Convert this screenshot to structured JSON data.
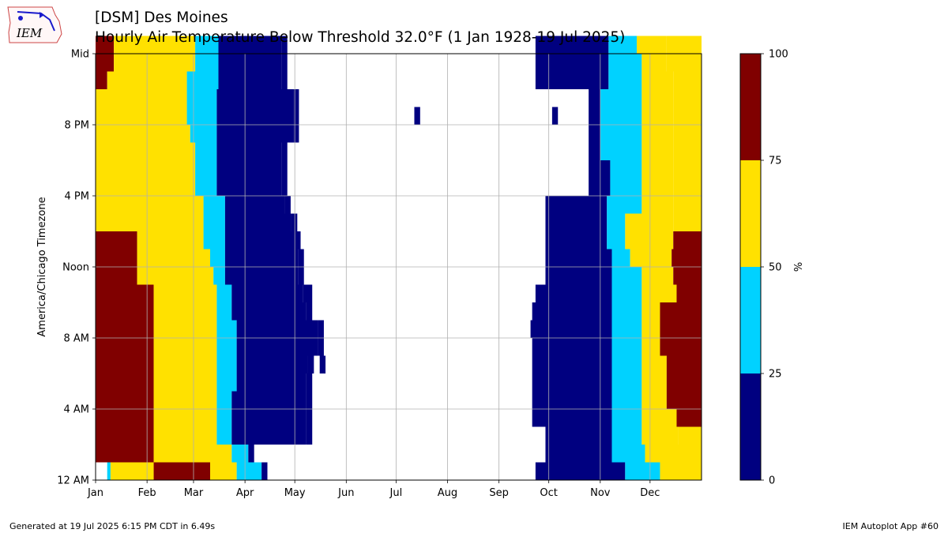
{
  "header": {
    "title_line1": "[DSM] Des Moines",
    "title_line2": "Hourly Air Temperature Below Threshold 32.0°F (1 Jan 1928-19 Jul 2025)",
    "logo_text": "IEM"
  },
  "footer": {
    "generated": "Generated at 19 Jul 2025 6:15 PM CDT in 6.49s",
    "app": "IEM Autoplot App #60"
  },
  "chart_data": {
    "type": "heatmap",
    "ylabel": "America/Chicago Timezone",
    "x_tick_labels": [
      "Jan",
      "Feb",
      "Mar",
      "Apr",
      "May",
      "Jun",
      "Jul",
      "Aug",
      "Sep",
      "Oct",
      "Nov",
      "Dec"
    ],
    "x_tick_days": [
      1,
      32,
      60,
      91,
      121,
      152,
      182,
      213,
      244,
      274,
      305,
      335
    ],
    "xlim_days": [
      1,
      366
    ],
    "y_tick_labels": [
      "12 AM",
      "4 AM",
      "8 AM",
      "Noon",
      "4 PM",
      "8 PM",
      "Mid"
    ],
    "y_tick_hours": [
      0,
      4,
      8,
      12,
      16,
      20,
      24
    ],
    "ylim_hours": [
      0,
      24
    ],
    "grid": true,
    "colorbar": {
      "label": "%",
      "ticks": [
        0,
        25,
        50,
        75,
        100
      ],
      "bins": [
        {
          "range": [
            0,
            25
          ],
          "color": "#000080"
        },
        {
          "range": [
            25,
            50
          ],
          "color": "#00d2ff"
        },
        {
          "range": [
            50,
            75
          ],
          "color": "#ffe100"
        },
        {
          "range": [
            75,
            100
          ],
          "color": "#800000"
        }
      ]
    },
    "category_colors": {
      "0": "#000080",
      "1": "#00d2ff",
      "2": "#ffe100",
      "3": "#800000"
    },
    "boundary_days_by_hour": [
      [
        [
          8,
          1,
          10,
          2,
          36,
          3,
          70,
          2,
          86,
          1,
          101,
          0
        ],
        [
          266,
          0,
          320,
          1,
          341,
          2
        ]
      ],
      [
        [
          1,
          3,
          36,
          2,
          70,
          2,
          83,
          1,
          93,
          0
        ],
        [
          272,
          0,
          312,
          1,
          332,
          2
        ]
      ],
      [
        [
          1,
          3,
          36,
          2,
          74,
          1,
          83,
          0,
          128,
          0
        ],
        [
          272,
          0,
          312,
          1,
          330,
          2,
          352,
          2
        ]
      ],
      [
        [
          1,
          3,
          36,
          2,
          74,
          1,
          83,
          0,
          128,
          0
        ],
        [
          264,
          0,
          312,
          1,
          330,
          2,
          351,
          3
        ]
      ],
      [
        [
          1,
          3,
          36,
          2,
          74,
          1,
          83,
          0,
          128,
          0
        ],
        [
          264,
          0,
          312,
          1,
          330,
          2,
          345,
          3
        ]
      ],
      [
        [
          1,
          3,
          36,
          2,
          74,
          1,
          86,
          0,
          128,
          0
        ],
        [
          264,
          0,
          312,
          1,
          330,
          2,
          345,
          3
        ]
      ],
      [
        [
          1,
          3,
          36,
          2,
          74,
          1,
          86,
          0,
          129,
          0
        ],
        [
          264,
          0,
          312,
          1,
          330,
          2,
          345,
          3
        ]
      ],
      [
        [
          1,
          3,
          36,
          2,
          74,
          1,
          86,
          0,
          135,
          0
        ],
        [
          264,
          0,
          312,
          1,
          330,
          2,
          341,
          3
        ]
      ],
      [
        [
          1,
          3,
          36,
          2,
          74,
          1,
          86,
          0,
          135,
          0
        ],
        [
          263,
          0,
          312,
          1,
          330,
          2,
          341,
          3
        ]
      ],
      [
        [
          1,
          3,
          36,
          2,
          74,
          1,
          83,
          0,
          128,
          0
        ],
        [
          264,
          0,
          312,
          1,
          330,
          2,
          341,
          3
        ]
      ],
      [
        [
          1,
          3,
          36,
          2,
          74,
          1,
          83,
          0,
          126,
          0
        ],
        [
          266,
          0,
          312,
          1,
          330,
          2,
          351,
          3
        ]
      ],
      [
        [
          1,
          3,
          26,
          2,
          72,
          1,
          79,
          0,
          123,
          0
        ],
        [
          272,
          0,
          312,
          1,
          330,
          2,
          349,
          3
        ]
      ],
      [
        [
          1,
          3,
          26,
          2,
          70,
          1,
          79,
          0,
          123,
          0
        ],
        [
          272,
          0,
          312,
          1,
          323,
          2,
          348,
          3
        ]
      ],
      [
        [
          1,
          3,
          26,
          2,
          66,
          1,
          79,
          0,
          121,
          0
        ],
        [
          272,
          0,
          309,
          1,
          320,
          2,
          349,
          3
        ]
      ],
      [
        [
          1,
          2,
          66,
          1,
          79,
          0,
          119,
          0
        ],
        [
          272,
          0,
          309,
          1,
          320,
          2,
          349,
          2
        ]
      ],
      [
        [
          1,
          2,
          66,
          1,
          79,
          0,
          115,
          0
        ],
        [
          272,
          0,
          309,
          1,
          330,
          2,
          349,
          2
        ]
      ],
      [
        [
          1,
          2,
          61,
          1,
          74,
          0,
          113,
          0
        ],
        [
          298,
          0,
          311,
          1,
          330,
          2,
          349,
          2
        ]
      ],
      [
        [
          1,
          2,
          61,
          1,
          74,
          0,
          113,
          0
        ],
        [
          298,
          0,
          311,
          1,
          330,
          2,
          349,
          2
        ]
      ],
      [
        [
          1,
          2,
          61,
          1,
          74,
          0,
          113,
          0
        ],
        [
          298,
          0,
          305,
          1,
          330,
          2,
          349,
          2
        ]
      ],
      [
        [
          1,
          2,
          58,
          1,
          74,
          0,
          120,
          0
        ],
        [
          298,
          0,
          305,
          1,
          330,
          2,
          349,
          2
        ]
      ],
      [
        [
          1,
          2,
          56,
          1,
          74,
          0,
          120,
          0
        ],
        [
          298,
          0,
          305,
          1,
          330,
          2,
          349,
          2
        ]
      ],
      [
        [
          1,
          2,
          56,
          1,
          74,
          0,
          120,
          0
        ],
        [
          298,
          0,
          305,
          1,
          330,
          2,
          349,
          2
        ]
      ],
      [
        [
          1,
          3,
          8,
          2,
          56,
          1,
          75,
          0,
          113,
          0
        ],
        [
          266,
          0,
          310,
          1,
          330,
          2,
          349,
          2
        ]
      ],
      [
        [
          1,
          3,
          12,
          2,
          61,
          1,
          75,
          0,
          113,
          0
        ],
        [
          266,
          0,
          310,
          1,
          330,
          2,
          345,
          2
        ]
      ],
      [
        [
          1,
          3,
          12,
          2,
          61,
          1,
          75,
          0,
          113,
          0
        ],
        [
          266,
          0,
          310,
          1,
          327,
          2,
          345,
          2
        ]
      ]
    ],
    "isolated_cells": [
      {
        "day": 193,
        "hour": 20,
        "category": 0
      },
      {
        "day": 276,
        "hour": 20,
        "category": 0
      },
      {
        "day": 128,
        "hour": 10,
        "category": 0
      },
      {
        "day": 136,
        "hour": 6,
        "category": 0
      },
      {
        "day": 272,
        "hour": 10,
        "category": 0
      }
    ]
  }
}
